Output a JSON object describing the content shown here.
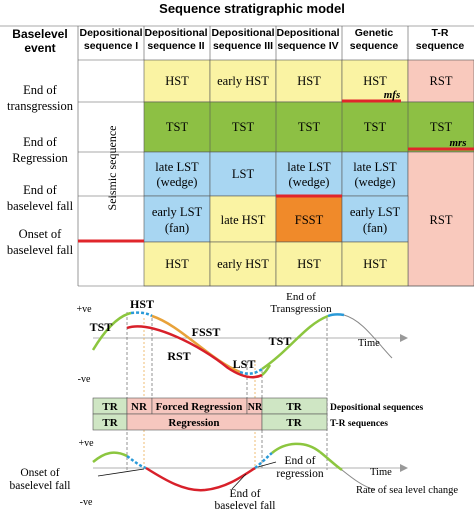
{
  "title": "Sequence stratigraphic model",
  "row_header_label": "Baselevel event",
  "columns": [
    "Depositional sequence I",
    "Depositional sequence II",
    "Depositional sequence III",
    "Depositional sequence IV",
    "Genetic sequence",
    "T-R sequence"
  ],
  "events": [
    "End of transgression",
    "End of Regression",
    "End of baselevel fall",
    "Onset of baselevel fall"
  ],
  "seismic_label": "Seismic sequence",
  "rows": [
    [
      "",
      "HST",
      "early HST",
      "HST",
      "HST",
      "RST"
    ],
    [
      "",
      "TST",
      "TST",
      "TST",
      "TST",
      "TST"
    ],
    [
      "",
      "late LST (wedge)",
      "LST",
      "late LST (wedge)",
      "late LST (wedge)",
      ""
    ],
    [
      "",
      "early LST (fan)",
      "late HST",
      "FSST",
      "early LST (fan)",
      "RST"
    ],
    [
      "",
      "HST",
      "early HST",
      "HST",
      "HST",
      ""
    ]
  ],
  "surface_labels": {
    "mfs": "mfs",
    "mrs": "mrs"
  },
  "curve_labels": {
    "plus_ve_top": "+ve",
    "minus_ve_top": "-ve",
    "HST": "HST",
    "TST_left": "TST",
    "FSST": "FSST",
    "RST": "RST",
    "LST": "LST",
    "TST_right": "TST",
    "end_transgression": "End of Transgression",
    "time_top": "Time",
    "plus_ve_bottom": "+ve",
    "minus_ve_bottom": "-ve",
    "onset_fall": "Onset of baselevel fall",
    "end_regression": "End of regression",
    "end_fall": "End of baselevel fall",
    "time_bottom": "Time",
    "rate_label": "Rate of sea level change"
  },
  "bars": {
    "depositional": [
      "TR",
      "NR",
      "Forced Regression",
      "NR",
      "TR"
    ],
    "depositional_label": "Depositional sequences",
    "tr": [
      "TR",
      "Regression",
      "TR"
    ],
    "tr_label": "T-R sequences"
  },
  "colors": {
    "hst": "#faf3a3",
    "tst": "#8dc044",
    "lst": "#a8d6f2",
    "fsst": "#f08a2a",
    "rst": "#f9c9bd",
    "surface": "#e0262b",
    "bar_green": "#cfe6c4",
    "bar_pink": "#f6c7bf",
    "curve_green": "#8cc63f",
    "curve_orange": "#e8a23a",
    "curve_red": "#d8202a",
    "curve_blue": "#2a9ad8"
  }
}
